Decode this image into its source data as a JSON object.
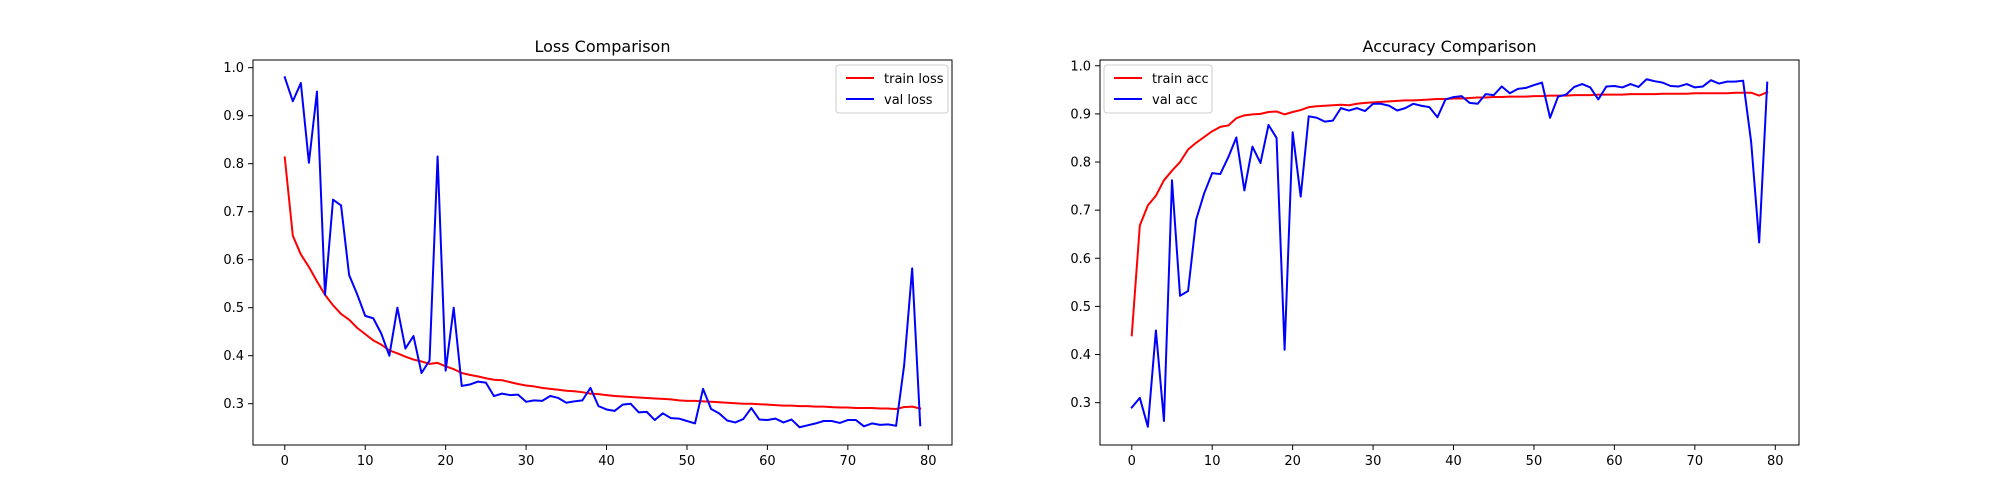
{
  "chart_data": [
    {
      "type": "line",
      "title": "Loss Comparison",
      "xlabel": "",
      "ylabel": "",
      "xlim": [
        -3.95,
        82.95
      ],
      "ylim": [
        0.214,
        1.016
      ],
      "xticks": [
        0,
        10,
        20,
        30,
        40,
        50,
        60,
        70,
        80
      ],
      "yticks": [
        0.3,
        0.4,
        0.5,
        0.6,
        0.7,
        0.8,
        0.9,
        1.0
      ],
      "xtick_labels": [
        "0",
        "10",
        "20",
        "30",
        "40",
        "50",
        "60",
        "70",
        "80"
      ],
      "ytick_labels": [
        "0.3",
        "0.4",
        "0.5",
        "0.6",
        "0.7",
        "0.8",
        "0.9",
        "1.0"
      ],
      "legend_position": "upper right",
      "grid": false,
      "series": [
        {
          "name": "train loss",
          "color": "#ff0000",
          "values": [
            0.813,
            0.65,
            0.611,
            0.585,
            0.555,
            0.527,
            0.505,
            0.487,
            0.475,
            0.458,
            0.445,
            0.432,
            0.423,
            0.411,
            0.405,
            0.398,
            0.392,
            0.388,
            0.383,
            0.385,
            0.378,
            0.372,
            0.364,
            0.36,
            0.357,
            0.353,
            0.35,
            0.349,
            0.345,
            0.341,
            0.338,
            0.336,
            0.333,
            0.331,
            0.329,
            0.327,
            0.326,
            0.324,
            0.321,
            0.32,
            0.318,
            0.316,
            0.315,
            0.314,
            0.313,
            0.312,
            0.311,
            0.31,
            0.309,
            0.307,
            0.306,
            0.306,
            0.305,
            0.304,
            0.303,
            0.302,
            0.301,
            0.3,
            0.3,
            0.299,
            0.298,
            0.297,
            0.296,
            0.296,
            0.295,
            0.295,
            0.294,
            0.294,
            0.293,
            0.292,
            0.292,
            0.291,
            0.291,
            0.291,
            0.29,
            0.29,
            0.289,
            0.293,
            0.294,
            0.29
          ]
        },
        {
          "name": "val loss",
          "color": "#0000ff",
          "values": [
            0.98,
            0.93,
            0.968,
            0.802,
            0.95,
            0.527,
            0.725,
            0.713,
            0.568,
            0.528,
            0.483,
            0.478,
            0.446,
            0.4,
            0.5,
            0.415,
            0.441,
            0.364,
            0.39,
            0.815,
            0.369,
            0.5,
            0.337,
            0.34,
            0.346,
            0.344,
            0.316,
            0.321,
            0.318,
            0.319,
            0.304,
            0.307,
            0.306,
            0.316,
            0.312,
            0.302,
            0.305,
            0.307,
            0.333,
            0.295,
            0.288,
            0.285,
            0.298,
            0.3,
            0.282,
            0.283,
            0.266,
            0.28,
            0.27,
            0.269,
            0.264,
            0.259,
            0.331,
            0.289,
            0.28,
            0.265,
            0.261,
            0.268,
            0.291,
            0.267,
            0.266,
            0.269,
            0.261,
            0.267,
            0.251,
            0.255,
            0.259,
            0.264,
            0.264,
            0.26,
            0.266,
            0.266,
            0.253,
            0.259,
            0.256,
            0.257,
            0.254,
            0.38,
            0.582,
            0.255
          ]
        }
      ]
    },
    {
      "type": "line",
      "title": "Accuracy Comparison",
      "xlabel": "",
      "ylabel": "",
      "xlim": [
        -3.95,
        82.95
      ],
      "ylim": [
        0.212,
        1.012
      ],
      "xticks": [
        0,
        10,
        20,
        30,
        40,
        50,
        60,
        70,
        80
      ],
      "yticks": [
        0.3,
        0.4,
        0.5,
        0.6,
        0.7,
        0.8,
        0.9,
        1.0
      ],
      "xtick_labels": [
        "0",
        "10",
        "20",
        "30",
        "40",
        "50",
        "60",
        "70",
        "80"
      ],
      "ytick_labels": [
        "0.3",
        "0.4",
        "0.5",
        "0.6",
        "0.7",
        "0.8",
        "0.9",
        "1.0"
      ],
      "legend_position": "upper left",
      "grid": false,
      "series": [
        {
          "name": "train acc",
          "color": "#ff0000",
          "values": [
            0.44,
            0.668,
            0.71,
            0.73,
            0.762,
            0.782,
            0.8,
            0.826,
            0.84,
            0.852,
            0.864,
            0.873,
            0.876,
            0.891,
            0.897,
            0.899,
            0.9,
            0.904,
            0.905,
            0.899,
            0.904,
            0.908,
            0.914,
            0.916,
            0.917,
            0.918,
            0.919,
            0.918,
            0.921,
            0.923,
            0.924,
            0.925,
            0.926,
            0.927,
            0.928,
            0.928,
            0.929,
            0.93,
            0.931,
            0.931,
            0.932,
            0.932,
            0.933,
            0.934,
            0.934,
            0.935,
            0.935,
            0.936,
            0.936,
            0.936,
            0.937,
            0.937,
            0.938,
            0.938,
            0.938,
            0.939,
            0.939,
            0.939,
            0.94,
            0.94,
            0.94,
            0.94,
            0.941,
            0.941,
            0.941,
            0.941,
            0.942,
            0.942,
            0.942,
            0.942,
            0.943,
            0.943,
            0.943,
            0.943,
            0.943,
            0.944,
            0.944,
            0.944,
            0.938,
            0.945
          ]
        },
        {
          "name": "val acc",
          "color": "#0000ff",
          "values": [
            0.29,
            0.31,
            0.25,
            0.45,
            0.262,
            0.762,
            0.522,
            0.532,
            0.68,
            0.735,
            0.777,
            0.775,
            0.81,
            0.851,
            0.741,
            0.832,
            0.798,
            0.877,
            0.85,
            0.41,
            0.862,
            0.728,
            0.895,
            0.892,
            0.884,
            0.886,
            0.912,
            0.907,
            0.912,
            0.906,
            0.921,
            0.921,
            0.917,
            0.907,
            0.912,
            0.921,
            0.917,
            0.914,
            0.893,
            0.93,
            0.935,
            0.937,
            0.923,
            0.921,
            0.941,
            0.939,
            0.957,
            0.943,
            0.952,
            0.954,
            0.96,
            0.965,
            0.892,
            0.936,
            0.94,
            0.956,
            0.962,
            0.955,
            0.93,
            0.957,
            0.958,
            0.955,
            0.962,
            0.956,
            0.972,
            0.968,
            0.965,
            0.958,
            0.957,
            0.962,
            0.955,
            0.957,
            0.97,
            0.963,
            0.967,
            0.967,
            0.969,
            0.842,
            0.633,
            0.965
          ]
        }
      ]
    }
  ]
}
